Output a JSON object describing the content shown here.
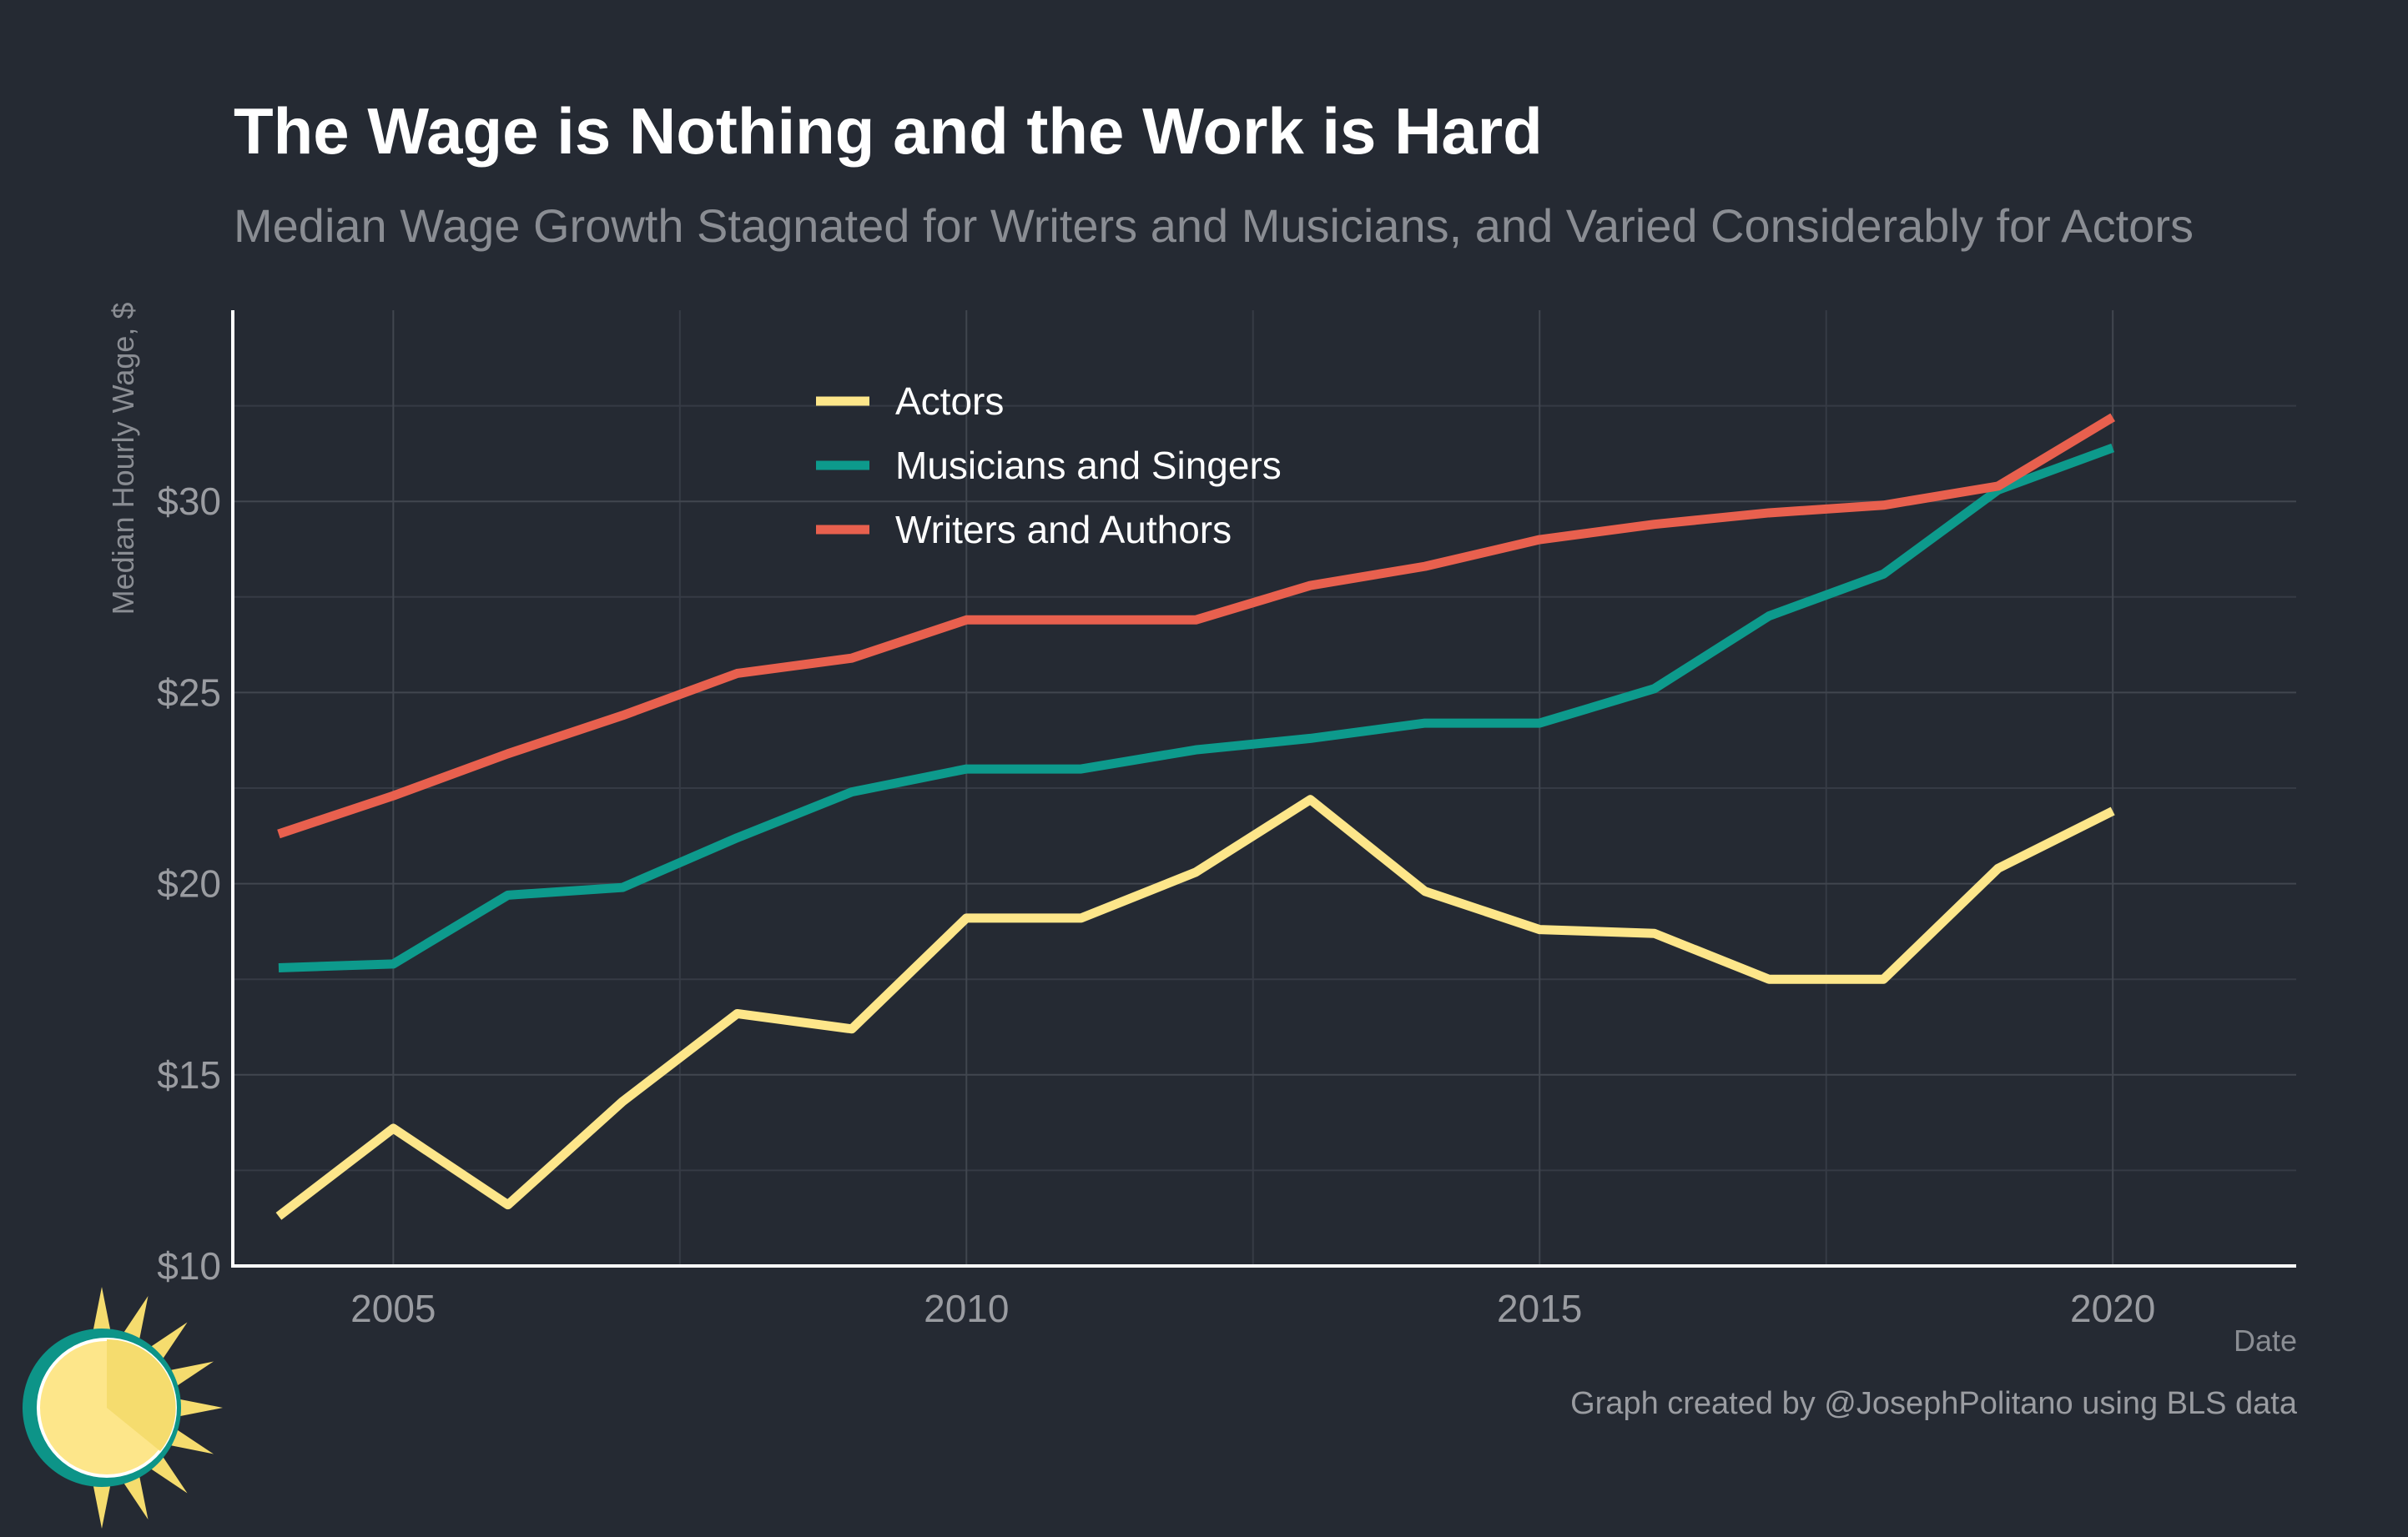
{
  "title": "The Wage is Nothing and the Work is Hard",
  "subtitle": "Median Wage Growth Stagnated for Writers and Musicians, and Varied Considerably for Actors",
  "caption": "Graph created by @JosephPolitano using BLS data",
  "logo": {
    "icon": "sun-logo-icon",
    "colors": {
      "sun": "#fde68a",
      "ring": "#0d9488"
    }
  },
  "chart_data": {
    "type": "line",
    "xlabel": "Date",
    "ylabel": "Median Hourly Wage, $",
    "xlim": [
      2003.6,
      2021.6
    ],
    "ylim": [
      10,
      35
    ],
    "x_ticks": [
      2005,
      2010,
      2015,
      2020
    ],
    "x_tick_labels": [
      "2005",
      "2010",
      "2015",
      "2020"
    ],
    "y_ticks": [
      10,
      15,
      20,
      25,
      30
    ],
    "y_tick_labels": [
      "$10",
      "$15",
      "$20",
      "$25",
      "$30"
    ],
    "grid": true,
    "legend_position": "top-center",
    "x": [
      2004,
      2005,
      2006,
      2007,
      2008,
      2009,
      2010,
      2011,
      2012,
      2013,
      2014,
      2015,
      2016,
      2017,
      2018,
      2019,
      2020
    ],
    "series": [
      {
        "name": "Actors",
        "color": "#fde68a",
        "values": [
          11.3,
          13.6,
          11.6,
          14.3,
          16.6,
          16.2,
          19.1,
          19.1,
          20.3,
          22.2,
          19.8,
          18.8,
          18.7,
          17.5,
          17.5,
          20.4,
          21.9
        ]
      },
      {
        "name": "Musicians and Singers",
        "color": "#0d9a8c",
        "values": [
          17.8,
          17.9,
          19.7,
          19.9,
          21.2,
          22.4,
          23.0,
          23.0,
          23.5,
          23.8,
          24.2,
          24.2,
          25.1,
          27.0,
          28.1,
          30.3,
          31.4
        ]
      },
      {
        "name": "Writers and Authors",
        "color": "#e8604e",
        "values": [
          21.3,
          22.3,
          23.4,
          24.4,
          25.5,
          25.9,
          26.9,
          26.9,
          26.9,
          27.8,
          28.3,
          29.0,
          29.4,
          29.7,
          29.9,
          30.4,
          32.2
        ]
      }
    ]
  }
}
